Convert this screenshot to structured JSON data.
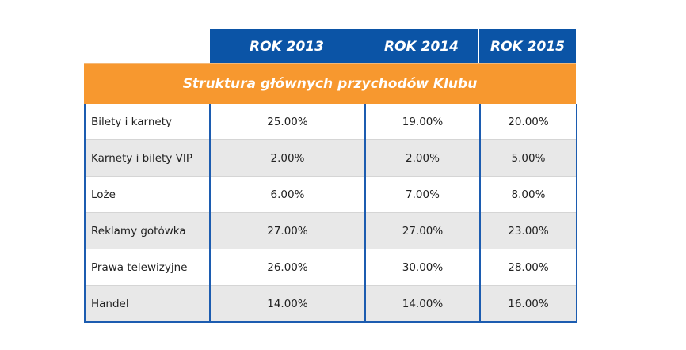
{
  "header": {
    "years": [
      "ROK 2013",
      "ROK 2014",
      "ROK 2015"
    ]
  },
  "section_title": "Struktura głównych przychodów Klubu",
  "rows": [
    {
      "label": "Bilety i karnety",
      "values": [
        "25.00%",
        "19.00%",
        "20.00%"
      ]
    },
    {
      "label": "Karnety i bilety VIP",
      "values": [
        "2.00%",
        "2.00%",
        "5.00%"
      ]
    },
    {
      "label": "Loże",
      "values": [
        "6.00%",
        "7.00%",
        "8.00%"
      ]
    },
    {
      "label": "Reklamy gotówka",
      "values": [
        "27.00%",
        "27.00%",
        "23.00%"
      ]
    },
    {
      "label": "Prawa telewizyjne",
      "values": [
        "26.00%",
        "30.00%",
        "28.00%"
      ]
    },
    {
      "label": "Handel",
      "values": [
        "14.00%",
        "14.00%",
        "16.00%"
      ]
    }
  ],
  "colors": {
    "header_blue": "#0b54a6",
    "section_orange": "#f7982f",
    "border_blue": "#1c5cb0",
    "stripe_gray": "#e8e8e8"
  }
}
